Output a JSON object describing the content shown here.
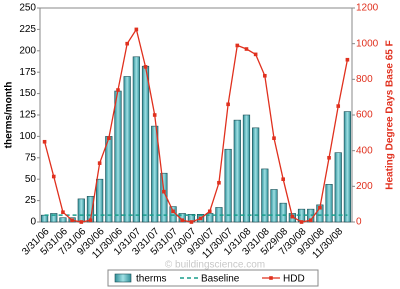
{
  "chart_data": {
    "type": "bar-line",
    "y_label": "therms/month",
    "y2_label": "Heating Degree Days Base 65 F",
    "watermark": "© buildingscience.com",
    "categories": [
      "3/31/06",
      null,
      "5/31/06",
      null,
      "7/31/06",
      null,
      "9/30/06",
      null,
      "11/30/06",
      null,
      "1/31/07",
      null,
      "3/31/07",
      null,
      "5/31/07",
      null,
      "7/30/07",
      null,
      "9/30/07",
      null,
      "11/30/07",
      null,
      "1/31/08",
      null,
      "3/31/08",
      null,
      "5/29/08",
      null,
      "7/30/08",
      null,
      "9/30/08",
      null,
      "11/30/08",
      null
    ],
    "series": [
      {
        "name": "therms",
        "style": "bar",
        "color": "#5bb6be",
        "axis": "y",
        "values": [
          8,
          10,
          5,
          5,
          27,
          30,
          50,
          100,
          153,
          170,
          193,
          182,
          112,
          57,
          18,
          10,
          9,
          9,
          10,
          17,
          85,
          119,
          125,
          110,
          62,
          38,
          22,
          10,
          15,
          15,
          20,
          44,
          81,
          129
        ]
      },
      {
        "name": "Baseline",
        "style": "dashed",
        "color": "#1a9e8c",
        "axis": "y",
        "values": [
          8,
          8,
          8,
          8,
          8,
          8,
          8,
          8,
          8,
          8,
          8,
          8,
          8,
          8,
          8,
          8,
          8,
          8,
          8,
          8,
          8,
          8,
          8,
          8,
          8,
          8,
          8,
          8,
          8,
          8,
          8,
          8,
          8,
          8
        ]
      },
      {
        "name": "HDD",
        "style": "line",
        "color": "#e0301e",
        "axis": "y2",
        "values": [
          450,
          255,
          55,
          10,
          0,
          10,
          330,
          470,
          740,
          1000,
          1080,
          870,
          600,
          170,
          60,
          10,
          0,
          20,
          60,
          220,
          660,
          990,
          970,
          940,
          820,
          470,
          240,
          30,
          0,
          10,
          80,
          360,
          650,
          910
        ]
      }
    ],
    "ylim": [
      0,
      250
    ],
    "yticks": [
      0,
      25,
      50,
      75,
      100,
      125,
      150,
      175,
      200,
      225,
      250
    ],
    "y2lim": [
      0,
      1200
    ],
    "y2ticks": [
      0,
      200,
      400,
      600,
      800,
      1000,
      1200
    ],
    "grid": false
  }
}
